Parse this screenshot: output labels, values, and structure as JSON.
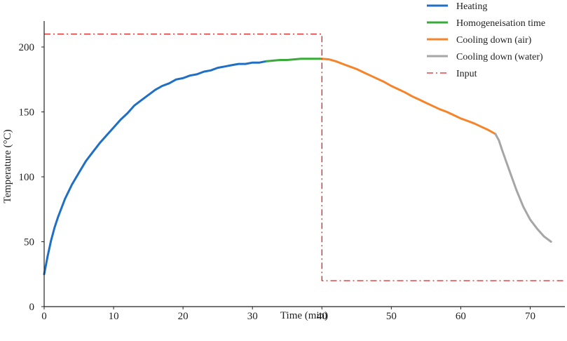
{
  "chart_data": {
    "type": "line",
    "title": "",
    "xlabel": "Time (min)",
    "ylabel": "Temperature (°C)",
    "xlim": [
      0,
      75
    ],
    "ylim": [
      0,
      220
    ],
    "x_ticks": [
      0,
      10,
      20,
      30,
      40,
      50,
      60,
      70
    ],
    "y_ticks": [
      0,
      50,
      100,
      150,
      200
    ],
    "grid": false,
    "legend_position": "top-right",
    "series": [
      {
        "name": "Heating",
        "color": "#1f6fc5",
        "style": "solid",
        "x": [
          0,
          0.5,
          1,
          1.5,
          2,
          3,
          4,
          5,
          6,
          7,
          8,
          9,
          10,
          11,
          12,
          13,
          14,
          15,
          16,
          17,
          18,
          19,
          20,
          21,
          22,
          23,
          24,
          25,
          26,
          27,
          28,
          29,
          30,
          31,
          32
        ],
        "y": [
          25,
          39,
          51,
          61,
          69,
          83,
          94,
          103,
          112,
          119,
          126,
          132,
          138,
          144,
          149,
          155,
          159,
          163,
          167,
          170,
          172,
          175,
          176,
          178,
          179,
          181,
          182,
          184,
          185,
          186,
          187,
          187,
          188,
          188,
          189
        ]
      },
      {
        "name": "Homogeneisation time",
        "color": "#3aab3a",
        "style": "solid",
        "x": [
          32,
          33,
          34,
          35,
          36,
          37,
          38,
          39,
          40
        ],
        "y": [
          189,
          189.5,
          190,
          190,
          190.5,
          191,
          191,
          191,
          191
        ]
      },
      {
        "name": "Cooling down (air)",
        "color": "#f5842b",
        "style": "solid",
        "x": [
          40,
          41,
          42,
          43,
          44,
          45,
          46,
          47,
          48,
          49,
          50,
          51,
          52,
          53,
          54,
          55,
          56,
          57,
          58,
          59,
          60,
          61,
          62,
          63,
          64,
          65
        ],
        "y": [
          191,
          190.5,
          189,
          187,
          185,
          183,
          180.5,
          178,
          175.5,
          173,
          170,
          167.5,
          165,
          162,
          159.5,
          157,
          154.5,
          152,
          150,
          147.5,
          145,
          143,
          141,
          138.5,
          136,
          133
        ]
      },
      {
        "name": "Cooling down (water)",
        "color": "#a6a6a6",
        "style": "solid",
        "x": [
          65,
          65.5,
          66,
          67,
          68,
          69,
          70,
          71,
          72,
          73
        ],
        "y": [
          133,
          128,
          120,
          105,
          90,
          77,
          67,
          60,
          54,
          50
        ]
      },
      {
        "name": "Input",
        "color": "#e02020",
        "style": "dash-dot",
        "x": [
          0,
          40,
          40,
          75
        ],
        "y": [
          210,
          210,
          20,
          20
        ]
      }
    ]
  }
}
